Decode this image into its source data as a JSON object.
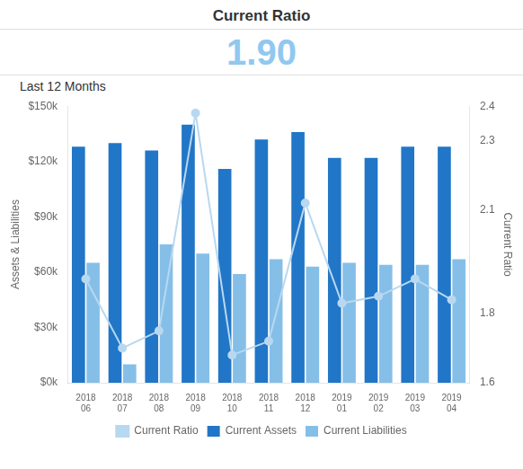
{
  "chart_data": {
    "type": "bar",
    "title": "Current Ratio",
    "subtitle": "Last 12 Months",
    "annotations": [
      "1.90"
    ],
    "categories": [
      "2018 06",
      "2018 07",
      "2018 08",
      "2018 09",
      "2018 10",
      "2018 11",
      "2018 12",
      "2019 01",
      "2019 02",
      "2019 03",
      "2019 04"
    ],
    "series": [
      {
        "name": "Current Ratio",
        "type": "line",
        "axis": "y2",
        "color": "#b8d8f0",
        "marker": "circle",
        "values": [
          1.9,
          1.7,
          1.75,
          2.38,
          1.68,
          1.72,
          2.12,
          1.83,
          1.85,
          1.9,
          1.84
        ]
      },
      {
        "name": "Current Assets",
        "type": "bar",
        "color": "#2176c7",
        "values": [
          128000,
          130000,
          126000,
          140000,
          116000,
          132000,
          136000,
          122000,
          122000,
          128000,
          128000
        ]
      },
      {
        "name": "Current Liabilities",
        "type": "bar",
        "color": "#85bfe8",
        "values": [
          65000,
          10000,
          75000,
          70000,
          59000,
          67000,
          63000,
          65000,
          64000,
          64000,
          67000
        ]
      }
    ],
    "ylabel": "Assets & Liabilities",
    "y2label": "Current Ratio",
    "ylim": [
      0,
      150000
    ],
    "yticks": [
      {
        "value": 0,
        "label": "$0k"
      },
      {
        "value": 30000,
        "label": "$30k"
      },
      {
        "value": 60000,
        "label": "$60k"
      },
      {
        "value": 90000,
        "label": "$90k"
      },
      {
        "value": 120000,
        "label": "$120k"
      },
      {
        "value": 150000,
        "label": "$150k"
      }
    ],
    "y2lim": [
      1.6,
      2.4
    ],
    "y2ticks": [
      1.6,
      1.8,
      2.1,
      2.3,
      2.4
    ],
    "grid": false,
    "legend": "bottom"
  }
}
